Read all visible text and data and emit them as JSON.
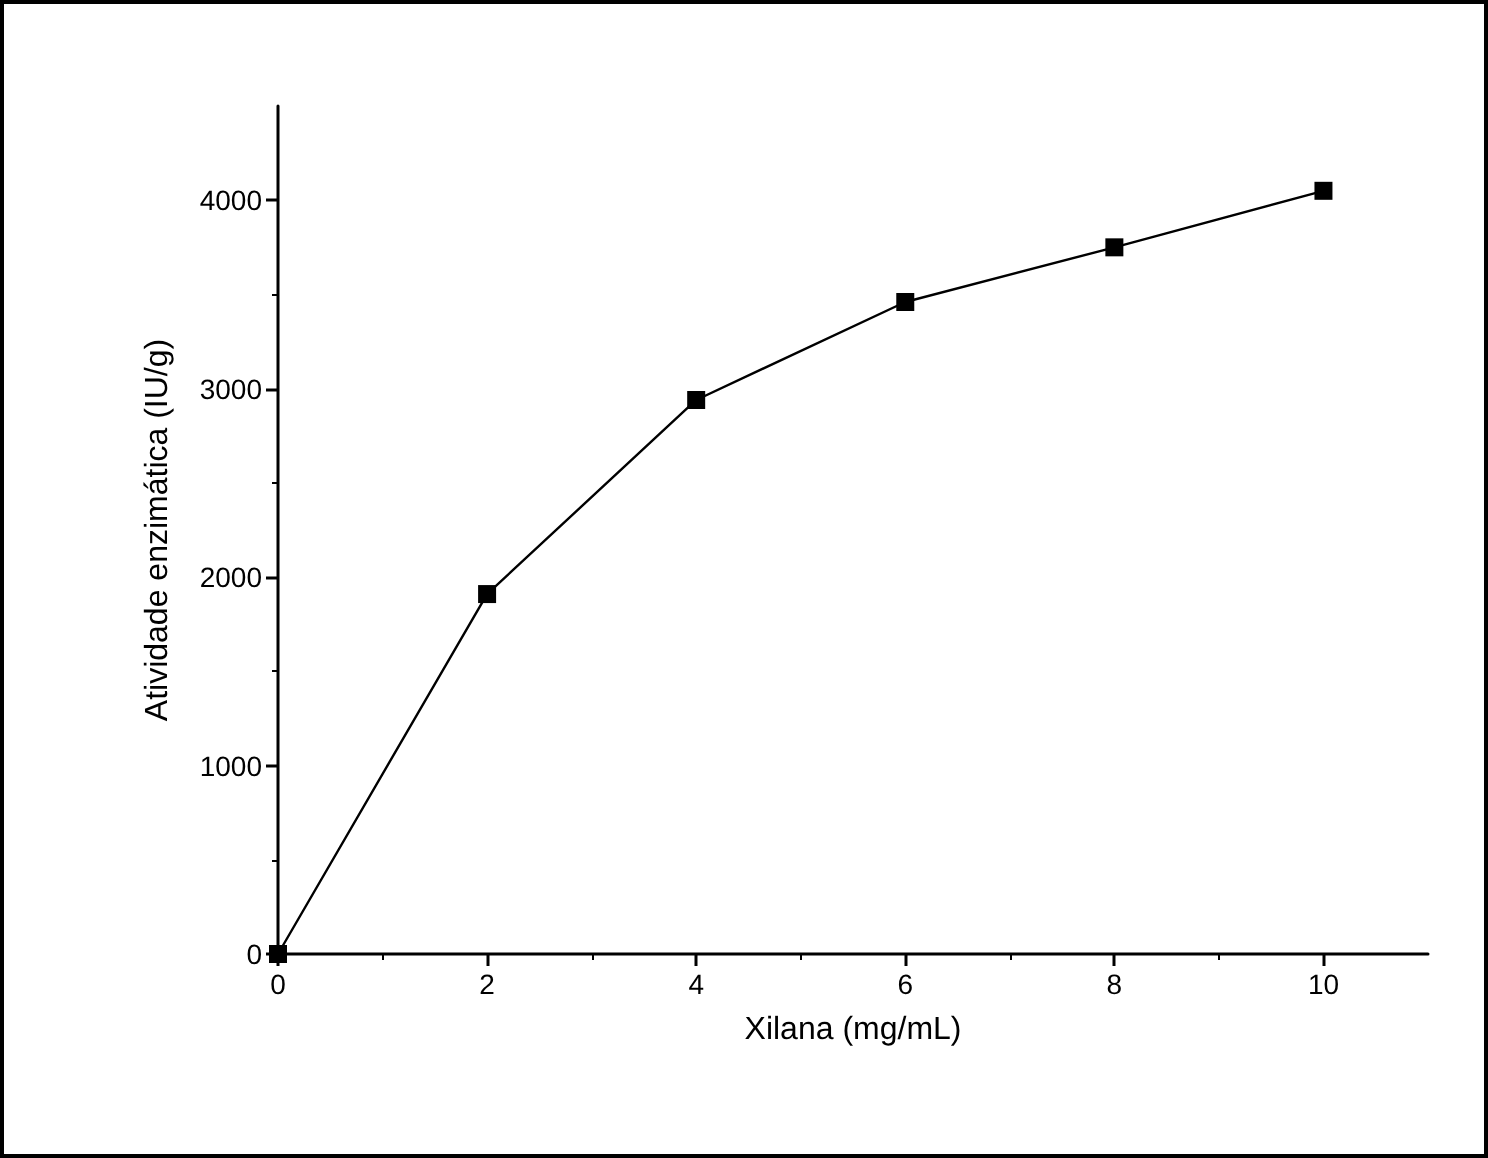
{
  "chart_data": {
    "type": "line",
    "xlabel": "Xilana (mg/mL)",
    "ylabel": "Atividade enzimática (IU/g)",
    "x": [
      0,
      2,
      4,
      6,
      8,
      10
    ],
    "series": [
      {
        "color": "#000000",
        "values": [
          0,
          1910,
          2940,
          3460,
          3750,
          4050
        ]
      }
    ],
    "xlim": [
      0,
      11
    ],
    "xticks": [
      0,
      2,
      4,
      6,
      8,
      10
    ],
    "ylim": [
      0,
      4500
    ],
    "yticks": [
      0,
      1000,
      2000,
      3000,
      4000
    ],
    "grid": false,
    "marker": "square",
    "line_style": "solid"
  }
}
